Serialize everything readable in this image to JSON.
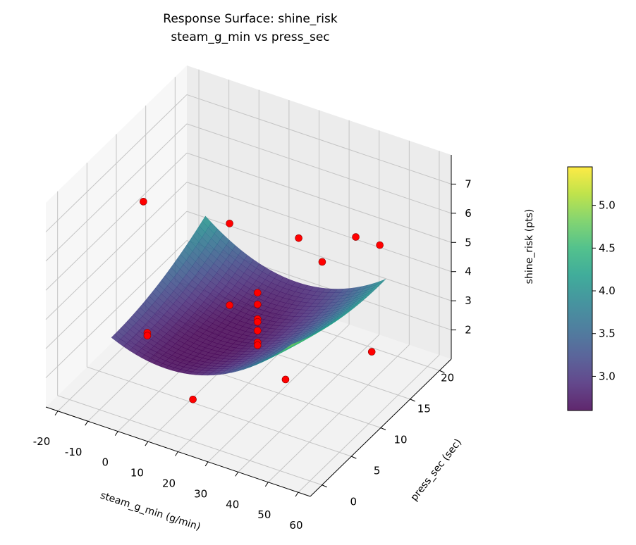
{
  "chart_data": {
    "type": "surface3d",
    "title": [
      "Response Surface: shine_risk",
      "steam_g_min vs press_sec"
    ],
    "xlabel": "steam_g_min (g/min)",
    "ylabel": "press_sec (sec)",
    "zlabel": "shine_risk (pts)",
    "xlim": [
      -24,
      64
    ],
    "ylim": [
      -2,
      22
    ],
    "zlim": [
      1,
      8
    ],
    "xticks": [
      -20,
      -10,
      0,
      10,
      20,
      30,
      40,
      50,
      60
    ],
    "yticks": [
      0,
      5,
      10,
      15,
      20
    ],
    "zticks": [
      2,
      3,
      4,
      5,
      6,
      7
    ],
    "grid": true,
    "colormap": "viridis",
    "colorbar": {
      "range": [
        2.6,
        5.45
      ],
      "ticks": [
        "3.0",
        "3.5",
        "4.0",
        "4.5",
        "5.0"
      ]
    },
    "surface": {
      "x_range": [
        -10,
        50
      ],
      "y_range": [
        2,
        18
      ],
      "model": "z = 2.65 + 0.0013*(x-22)^2 + 0.002*(x-22)*(10-y) + 0.004*(y-10)^2 + 0.02*(x-22)"
    },
    "points_color": "#ff0000",
    "points": [
      {
        "x": -15,
        "y": 10,
        "z": 6.0
      },
      {
        "x": 0,
        "y": 17,
        "z": 4.4
      },
      {
        "x": 23,
        "y": 17,
        "z": 4.7
      },
      {
        "x": 42,
        "y": 17,
        "z": 5.4
      },
      {
        "x": 50,
        "y": 17,
        "z": 5.4
      },
      {
        "x": 23,
        "y": 21,
        "z": 3.1
      },
      {
        "x": 61,
        "y": 10,
        "z": 3.5
      },
      {
        "x": 46,
        "y": 3,
        "z": 3.4
      },
      {
        "x": 23,
        "y": -1,
        "z": 2.7
      },
      {
        "x": 0,
        "y": 3,
        "z": 3.4
      },
      {
        "x": 0,
        "y": 3,
        "z": 3.3
      },
      {
        "x": 0,
        "y": 17,
        "z": 1.6
      },
      {
        "x": 23,
        "y": 10,
        "z": 4.2
      },
      {
        "x": 23,
        "y": 10,
        "z": 3.8
      },
      {
        "x": 23,
        "y": 10,
        "z": 3.3
      },
      {
        "x": 23,
        "y": 10,
        "z": 3.2
      },
      {
        "x": 23,
        "y": 10,
        "z": 2.9
      },
      {
        "x": 23,
        "y": 10,
        "z": 2.5
      },
      {
        "x": 23,
        "y": 10,
        "z": 2.4
      }
    ]
  }
}
